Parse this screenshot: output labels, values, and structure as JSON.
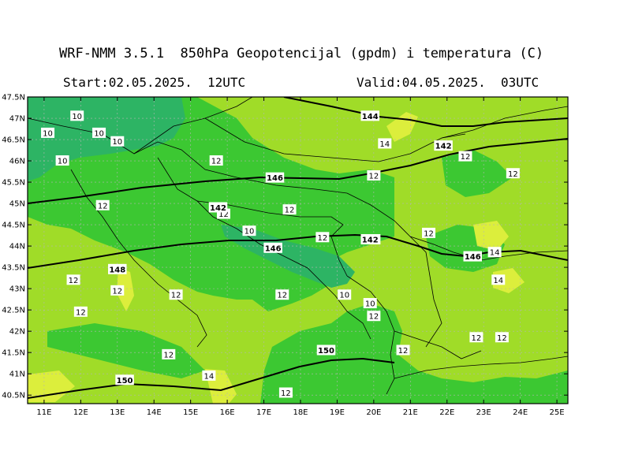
{
  "header": {
    "title": "WRF-NMM 3.5.1  850hPa Geopotencijal (gpdm) i temperatura (C)",
    "start": "Start:02.05.2025.  12UTC",
    "valid": "Valid:04.05.2025.  03UTC"
  },
  "axes": {
    "lon_labels": [
      "11E",
      "12E",
      "13E",
      "14E",
      "15E",
      "16E",
      "17E",
      "18E",
      "19E",
      "20E",
      "21E",
      "22E",
      "23E",
      "24E",
      "25E"
    ],
    "lat_labels": [
      "47.5N",
      "47N",
      "46.5N",
      "46N",
      "45.5N",
      "45N",
      "44.5N",
      "44N",
      "43.5N",
      "43N",
      "42.5N",
      "42N",
      "41.5N",
      "41N",
      "40.5N"
    ]
  },
  "colors": {
    "t10": "#2db464",
    "t12": "#3cc832",
    "t14": "#a0dc28",
    "t16": "#dcee3c",
    "contour": "#000000",
    "border": "#000000",
    "grid": "#b4b4b4"
  },
  "temperature_labels": [
    {
      "text": "10",
      "lon": 11.9,
      "lat": 47.05
    },
    {
      "text": "10",
      "lon": 11.1,
      "lat": 46.65
    },
    {
      "text": "10",
      "lon": 12.5,
      "lat": 46.65
    },
    {
      "text": "10",
      "lon": 13.0,
      "lat": 46.45
    },
    {
      "text": "10",
      "lon": 11.5,
      "lat": 46.0
    },
    {
      "text": "12",
      "lon": 15.7,
      "lat": 46.0
    },
    {
      "text": "12",
      "lon": 12.6,
      "lat": 44.95
    },
    {
      "text": "12",
      "lon": 15.9,
      "lat": 44.75
    },
    {
      "text": "10",
      "lon": 16.6,
      "lat": 44.35
    },
    {
      "text": "12",
      "lon": 17.7,
      "lat": 44.85
    },
    {
      "text": "12",
      "lon": 20.0,
      "lat": 45.65
    },
    {
      "text": "12",
      "lon": 18.6,
      "lat": 44.2
    },
    {
      "text": "12",
      "lon": 20.0,
      "lat": 44.15
    },
    {
      "text": "12",
      "lon": 21.5,
      "lat": 44.3
    },
    {
      "text": "12",
      "lon": 22.5,
      "lat": 46.1
    },
    {
      "text": "12",
      "lon": 23.8,
      "lat": 45.7
    },
    {
      "text": "14",
      "lon": 20.3,
      "lat": 46.4
    },
    {
      "text": "14",
      "lon": 23.3,
      "lat": 43.85
    },
    {
      "text": "14",
      "lon": 23.4,
      "lat": 43.2
    },
    {
      "text": "12",
      "lon": 11.8,
      "lat": 43.2
    },
    {
      "text": "12",
      "lon": 13.0,
      "lat": 42.95
    },
    {
      "text": "12",
      "lon": 14.6,
      "lat": 42.85
    },
    {
      "text": "12",
      "lon": 12.0,
      "lat": 42.45
    },
    {
      "text": "12",
      "lon": 17.5,
      "lat": 42.85
    },
    {
      "text": "10",
      "lon": 19.2,
      "lat": 42.85
    },
    {
      "text": "10",
      "lon": 19.9,
      "lat": 42.65
    },
    {
      "text": "12",
      "lon": 20.0,
      "lat": 42.35
    },
    {
      "text": "12",
      "lon": 20.8,
      "lat": 41.55
    },
    {
      "text": "12",
      "lon": 22.8,
      "lat": 41.85
    },
    {
      "text": "12",
      "lon": 23.5,
      "lat": 41.85
    },
    {
      "text": "12",
      "lon": 14.4,
      "lat": 41.45
    },
    {
      "text": "14",
      "lon": 15.5,
      "lat": 40.95
    },
    {
      "text": "12",
      "lon": 17.6,
      "lat": 40.55
    }
  ],
  "geopotential_labels": [
    {
      "text": "144",
      "lon": 19.9,
      "lat": 47.05
    },
    {
      "text": "142",
      "lon": 21.9,
      "lat": 46.35
    },
    {
      "text": "146",
      "lon": 17.3,
      "lat": 45.6
    },
    {
      "text": "142",
      "lon": 15.75,
      "lat": 44.9
    },
    {
      "text": "142",
      "lon": 19.9,
      "lat": 44.15
    },
    {
      "text": "146",
      "lon": 17.25,
      "lat": 43.95
    },
    {
      "text": "148",
      "lon": 13.0,
      "lat": 43.45
    },
    {
      "text": "146",
      "lon": 22.7,
      "lat": 43.75
    },
    {
      "text": "150",
      "lon": 18.7,
      "lat": 41.55
    },
    {
      "text": "150",
      "lon": 13.2,
      "lat": 40.85
    }
  ]
}
